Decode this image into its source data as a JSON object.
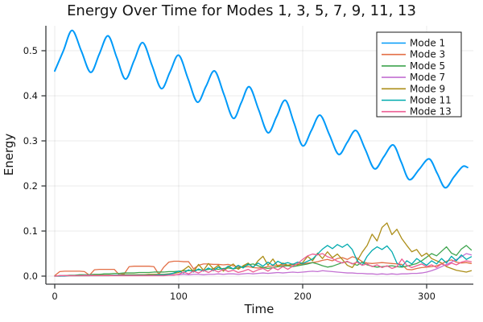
{
  "chart_data": {
    "type": "line",
    "title": "Energy Over Time for Modes 1, 3, 5, 7, 9, 11, 13",
    "xlabel": "Time",
    "ylabel": "Energy",
    "xlim": [
      -7,
      338
    ],
    "ylim": [
      -0.018,
      0.556
    ],
    "grid": true,
    "legend_position": "top-right",
    "background": "#ffffff",
    "grid_color": "rgba(0,0,0,0.08)",
    "spine_color": "#36383a",
    "xticks": {
      "values": [
        0,
        100,
        200,
        300
      ],
      "labels": [
        "0",
        "100",
        "200",
        "300"
      ]
    },
    "yticks": {
      "values": [
        0.0,
        0.1,
        0.2,
        0.3,
        0.4,
        0.5
      ],
      "labels": [
        "0.0",
        "0.1",
        "0.2",
        "0.3",
        "0.4",
        "0.5"
      ]
    },
    "series": [
      {
        "name": "Mode 1",
        "color": "#009AF9",
        "line_width": 2,
        "smooth": true,
        "points": [
          [
            0,
            0.455
          ],
          [
            7,
            0.5
          ],
          [
            14,
            0.545
          ],
          [
            21.5,
            0.499
          ],
          [
            29,
            0.452
          ],
          [
            36,
            0.493
          ],
          [
            43,
            0.533
          ],
          [
            50,
            0.485
          ],
          [
            57,
            0.437
          ],
          [
            64,
            0.478
          ],
          [
            71,
            0.518
          ],
          [
            78.5,
            0.467
          ],
          [
            86,
            0.416
          ],
          [
            93,
            0.453
          ],
          [
            100,
            0.49
          ],
          [
            107.5,
            0.438
          ],
          [
            115,
            0.386
          ],
          [
            122,
            0.421
          ],
          [
            129,
            0.455
          ],
          [
            136.5,
            0.403
          ],
          [
            144,
            0.35
          ],
          [
            150.5,
            0.385
          ],
          [
            157,
            0.42
          ],
          [
            164.5,
            0.369
          ],
          [
            172,
            0.318
          ],
          [
            179,
            0.354
          ],
          [
            186,
            0.39
          ],
          [
            193,
            0.34
          ],
          [
            200,
            0.289
          ],
          [
            207,
            0.323
          ],
          [
            214,
            0.357
          ],
          [
            221.5,
            0.314
          ],
          [
            229,
            0.27
          ],
          [
            236,
            0.297
          ],
          [
            243,
            0.323
          ],
          [
            250.5,
            0.281
          ],
          [
            258,
            0.238
          ],
          [
            265.5,
            0.265
          ],
          [
            273,
            0.291
          ],
          [
            279.5,
            0.253
          ],
          [
            286,
            0.214
          ],
          [
            294,
            0.237
          ],
          [
            302,
            0.26
          ],
          [
            308.5,
            0.228
          ],
          [
            315,
            0.196
          ],
          [
            322,
            0.22
          ],
          [
            329,
            0.243
          ],
          [
            333,
            0.241
          ]
        ]
      },
      {
        "name": "Mode 3",
        "color": "#E36F47",
        "line_width": 1.3,
        "smooth": false,
        "t_step": 4,
        "values": [
          0.001,
          0.01,
          0.011,
          0.011,
          0.011,
          0.011,
          0.01,
          0.002,
          0.014,
          0.015,
          0.015,
          0.015,
          0.015,
          0.003,
          0.005,
          0.021,
          0.022,
          0.022,
          0.022,
          0.022,
          0.021,
          0.004,
          0.02,
          0.031,
          0.033,
          0.033,
          0.032,
          0.032,
          0.016,
          0.024,
          0.027,
          0.027,
          0.026,
          0.026,
          0.025,
          0.026,
          0.023,
          0.021,
          0.02,
          0.021,
          0.019,
          0.018,
          0.019,
          0.021,
          0.023,
          0.024,
          0.025,
          0.024,
          0.025,
          0.026,
          0.027,
          0.029,
          0.03,
          0.032,
          0.035,
          0.037,
          0.034,
          0.039,
          0.041,
          0.037,
          0.043,
          0.04,
          0.032,
          0.029,
          0.028,
          0.029,
          0.03,
          0.029,
          0.028,
          0.027,
          0.026,
          0.015,
          0.014,
          0.017,
          0.019,
          0.02,
          0.021,
          0.023,
          0.027,
          0.033,
          0.036,
          0.031,
          0.029,
          0.03,
          0.028
        ]
      },
      {
        "name": "Mode 5",
        "color": "#3EA44E",
        "line_width": 1.3,
        "smooth": false,
        "t_step": 4,
        "values": [
          0.0,
          0.001,
          0.001,
          0.002,
          0.002,
          0.003,
          0.003,
          0.003,
          0.004,
          0.004,
          0.005,
          0.005,
          0.006,
          0.006,
          0.007,
          0.007,
          0.007,
          0.008,
          0.008,
          0.008,
          0.009,
          0.009,
          0.009,
          0.01,
          0.01,
          0.011,
          0.012,
          0.012,
          0.013,
          0.014,
          0.013,
          0.015,
          0.016,
          0.015,
          0.017,
          0.018,
          0.016,
          0.018,
          0.021,
          0.025,
          0.027,
          0.023,
          0.019,
          0.017,
          0.019,
          0.021,
          0.022,
          0.023,
          0.021,
          0.023,
          0.025,
          0.027,
          0.03,
          0.027,
          0.023,
          0.02,
          0.022,
          0.026,
          0.03,
          0.032,
          0.028,
          0.024,
          0.031,
          0.025,
          0.022,
          0.02,
          0.021,
          0.022,
          0.023,
          0.021,
          0.02,
          0.022,
          0.025,
          0.028,
          0.034,
          0.042,
          0.05,
          0.045,
          0.055,
          0.065,
          0.051,
          0.046,
          0.06,
          0.068,
          0.058
        ]
      },
      {
        "name": "Mode 7",
        "color": "#C371D2",
        "line_width": 1.3,
        "smooth": false,
        "t_step": 4,
        "values": [
          0.0,
          0.001,
          0.001,
          0.001,
          0.001,
          0.001,
          0.002,
          0.002,
          0.002,
          0.002,
          0.002,
          0.002,
          0.002,
          0.002,
          0.002,
          0.002,
          0.002,
          0.003,
          0.003,
          0.003,
          0.003,
          0.003,
          0.003,
          0.003,
          0.003,
          0.003,
          0.004,
          0.003,
          0.004,
          0.004,
          0.003,
          0.004,
          0.004,
          0.005,
          0.004,
          0.005,
          0.005,
          0.004,
          0.005,
          0.006,
          0.005,
          0.006,
          0.007,
          0.006,
          0.007,
          0.008,
          0.007,
          0.008,
          0.009,
          0.008,
          0.009,
          0.01,
          0.011,
          0.01,
          0.012,
          0.011,
          0.01,
          0.009,
          0.008,
          0.007,
          0.007,
          0.006,
          0.006,
          0.005,
          0.005,
          0.004,
          0.005,
          0.004,
          0.005,
          0.004,
          0.005,
          0.005,
          0.006,
          0.006,
          0.007,
          0.009,
          0.012,
          0.016,
          0.021,
          0.026,
          0.031,
          0.037,
          0.043,
          0.05,
          0.047
        ]
      },
      {
        "name": "Mode 9",
        "color": "#AC8E18",
        "line_width": 1.3,
        "smooth": false,
        "t_step": 4,
        "values": [
          0.0,
          0.0,
          0.001,
          0.001,
          0.001,
          0.001,
          0.001,
          0.001,
          0.002,
          0.002,
          0.002,
          0.002,
          0.002,
          0.002,
          0.003,
          0.003,
          0.003,
          0.003,
          0.003,
          0.004,
          0.004,
          0.004,
          0.004,
          0.005,
          0.006,
          0.008,
          0.014,
          0.022,
          0.01,
          0.026,
          0.013,
          0.028,
          0.016,
          0.024,
          0.011,
          0.02,
          0.027,
          0.015,
          0.023,
          0.029,
          0.019,
          0.034,
          0.044,
          0.024,
          0.038,
          0.021,
          0.029,
          0.024,
          0.027,
          0.025,
          0.03,
          0.044,
          0.034,
          0.051,
          0.039,
          0.054,
          0.041,
          0.049,
          0.037,
          0.024,
          0.019,
          0.034,
          0.053,
          0.068,
          0.093,
          0.078,
          0.108,
          0.118,
          0.092,
          0.104,
          0.083,
          0.068,
          0.054,
          0.059,
          0.044,
          0.051,
          0.039,
          0.034,
          0.029,
          0.021,
          0.017,
          0.013,
          0.011,
          0.009,
          0.012
        ]
      },
      {
        "name": "Mode 11",
        "color": "#00AAAE",
        "line_width": 1.3,
        "smooth": false,
        "t_step": 4,
        "values": [
          0.0,
          0.0,
          0.0,
          0.001,
          0.001,
          0.001,
          0.001,
          0.001,
          0.001,
          0.001,
          0.001,
          0.001,
          0.002,
          0.002,
          0.002,
          0.002,
          0.002,
          0.002,
          0.002,
          0.002,
          0.002,
          0.003,
          0.003,
          0.004,
          0.007,
          0.011,
          0.007,
          0.014,
          0.009,
          0.016,
          0.011,
          0.018,
          0.012,
          0.02,
          0.014,
          0.022,
          0.016,
          0.024,
          0.018,
          0.027,
          0.02,
          0.029,
          0.022,
          0.031,
          0.024,
          0.033,
          0.027,
          0.03,
          0.026,
          0.031,
          0.028,
          0.033,
          0.038,
          0.049,
          0.06,
          0.068,
          0.061,
          0.07,
          0.064,
          0.071,
          0.059,
          0.034,
          0.024,
          0.044,
          0.057,
          0.065,
          0.059,
          0.067,
          0.054,
          0.029,
          0.021,
          0.034,
          0.027,
          0.039,
          0.031,
          0.024,
          0.034,
          0.027,
          0.039,
          0.029,
          0.044,
          0.034,
          0.047,
          0.037,
          0.043
        ]
      },
      {
        "name": "Mode 13",
        "color": "#ED5E93",
        "line_width": 1.3,
        "smooth": false,
        "t_step": 4,
        "values": [
          0.0,
          0.001,
          0.001,
          0.001,
          0.001,
          0.001,
          0.001,
          0.001,
          0.001,
          0.001,
          0.001,
          0.001,
          0.001,
          0.001,
          0.001,
          0.001,
          0.001,
          0.001,
          0.001,
          0.001,
          0.001,
          0.001,
          0.001,
          0.002,
          0.002,
          0.004,
          0.009,
          0.005,
          0.011,
          0.007,
          0.013,
          0.008,
          0.014,
          0.009,
          0.015,
          0.01,
          0.013,
          0.008,
          0.011,
          0.015,
          0.009,
          0.014,
          0.017,
          0.011,
          0.019,
          0.014,
          0.021,
          0.015,
          0.022,
          0.028,
          0.037,
          0.045,
          0.049,
          0.047,
          0.05,
          0.043,
          0.039,
          0.033,
          0.029,
          0.033,
          0.027,
          0.031,
          0.024,
          0.027,
          0.021,
          0.025,
          0.019,
          0.023,
          0.017,
          0.021,
          0.038,
          0.024,
          0.019,
          0.023,
          0.027,
          0.021,
          0.025,
          0.019,
          0.027,
          0.023,
          0.029,
          0.025,
          0.031,
          0.034,
          0.032
        ]
      }
    ]
  }
}
